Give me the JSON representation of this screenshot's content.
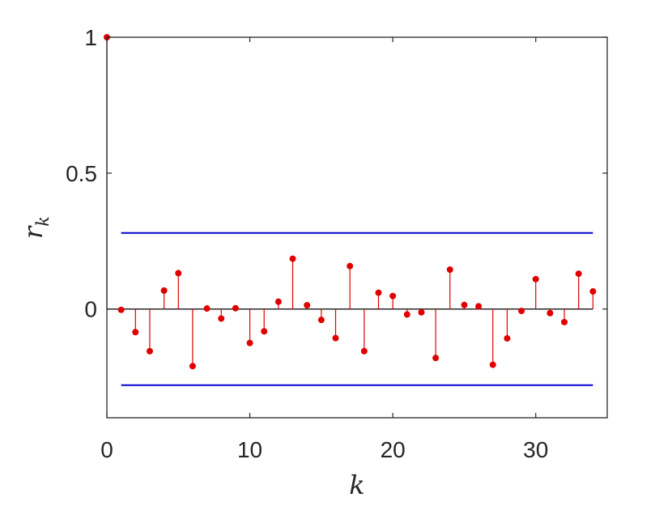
{
  "chart_data": {
    "type": "stem",
    "title": "",
    "xlabel": "k",
    "ylabel": {
      "base": "r",
      "subscript": "k"
    },
    "xlim": [
      0,
      35
    ],
    "ylim": [
      -0.4,
      1
    ],
    "xticks": [
      0,
      10,
      20,
      30
    ],
    "yticks": [
      0,
      0.5,
      1
    ],
    "ytick_labels": [
      "0",
      "0.5",
      "1"
    ],
    "grid": false,
    "legend": "none",
    "colors": {
      "stem": "#e00000",
      "bounds": "#0000cc",
      "baseline": "#000000",
      "axes": "#262626"
    },
    "stems": {
      "x": [
        0,
        1,
        2,
        3,
        4,
        5,
        6,
        7,
        8,
        9,
        10,
        11,
        12,
        13,
        14,
        15,
        16,
        17,
        18,
        19,
        20,
        21,
        22,
        23,
        24,
        25,
        26,
        27,
        28,
        29,
        30,
        31,
        32,
        33,
        34
      ],
      "y": [
        1,
        -0.003,
        -0.085,
        -0.155,
        0.068,
        0.132,
        -0.21,
        0.002,
        -0.035,
        0.003,
        -0.125,
        -0.082,
        0.027,
        0.185,
        0.014,
        -0.04,
        -0.107,
        0.158,
        -0.155,
        0.06,
        0.048,
        -0.02,
        -0.012,
        -0.18,
        0.145,
        0.015,
        0.01,
        -0.205,
        -0.108,
        -0.007,
        0.11,
        -0.015,
        -0.048,
        0.13,
        0.065
      ]
    },
    "confidence_bounds": {
      "upper": 0.28,
      "lower": -0.28,
      "x_range": [
        1,
        34
      ]
    }
  }
}
